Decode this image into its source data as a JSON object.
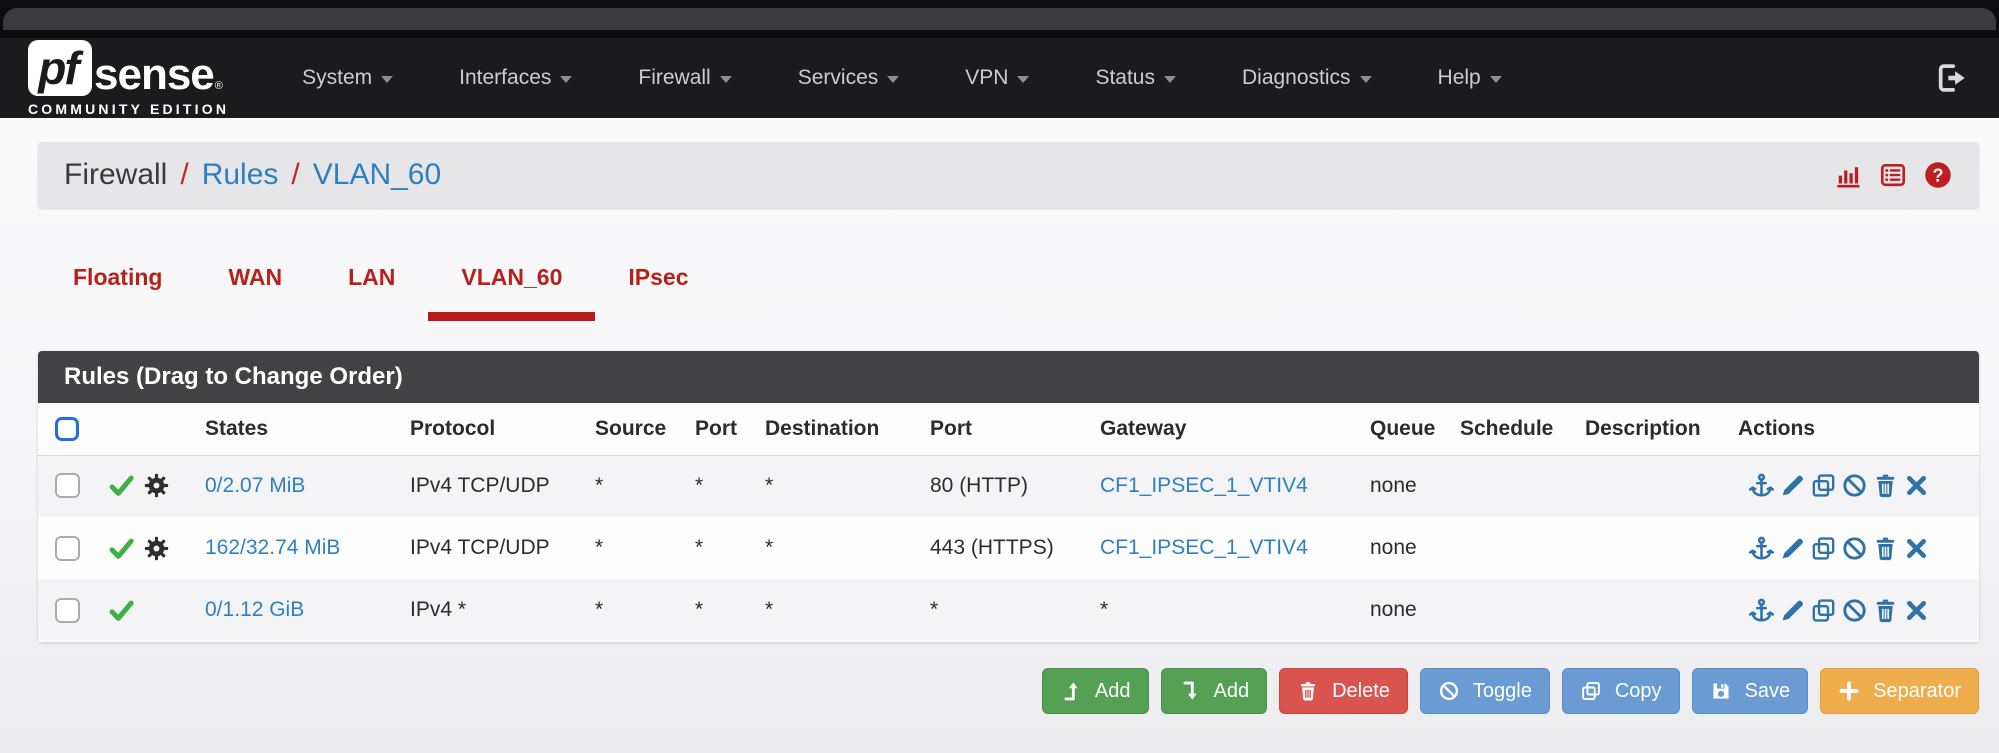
{
  "navbar": {
    "brand_pf": "pf",
    "brand_sense": "sense",
    "brand_reg": "®",
    "brand_subtitle": "COMMUNITY EDITION",
    "items": [
      {
        "label": "System"
      },
      {
        "label": "Interfaces"
      },
      {
        "label": "Firewall"
      },
      {
        "label": "Services"
      },
      {
        "label": "VPN"
      },
      {
        "label": "Status"
      },
      {
        "label": "Diagnostics"
      },
      {
        "label": "Help"
      }
    ],
    "logout_icon": "sign-out-icon"
  },
  "breadcrumb": {
    "section": "Firewall",
    "separator": "/",
    "links": [
      "Rules",
      "VLAN_60"
    ],
    "icons": [
      "bar-chart-icon",
      "table-list-icon",
      "help-circle-icon"
    ]
  },
  "tabs": [
    {
      "label": "Floating",
      "active": false
    },
    {
      "label": "WAN",
      "active": false
    },
    {
      "label": "LAN",
      "active": false
    },
    {
      "label": "VLAN_60",
      "active": true
    },
    {
      "label": "IPsec",
      "active": false
    }
  ],
  "rules": {
    "panel_title": "Rules (Drag to Change Order)",
    "columns": [
      "States",
      "Protocol",
      "Source",
      "Port",
      "Destination",
      "Port",
      "Gateway",
      "Queue",
      "Schedule",
      "Description",
      "Actions"
    ],
    "rows": [
      {
        "checked": false,
        "status_icons": [
          "check-icon",
          "gear-icon"
        ],
        "states": "0/2.07 MiB",
        "protocol": "IPv4 TCP/UDP",
        "source": "*",
        "source_port": "*",
        "destination": "*",
        "destination_port": "80 (HTTP)",
        "gateway": "CF1_IPSEC_1_VTIV4",
        "gateway_is_link": true,
        "queue": "none",
        "schedule": "",
        "description": "",
        "action_icons": [
          "anchor-icon",
          "pencil-icon",
          "copy-icon",
          "ban-icon",
          "trash-icon",
          "close-icon"
        ]
      },
      {
        "checked": false,
        "status_icons": [
          "check-icon",
          "gear-icon"
        ],
        "states": "162/32.74 MiB",
        "protocol": "IPv4 TCP/UDP",
        "source": "*",
        "source_port": "*",
        "destination": "*",
        "destination_port": "443 (HTTPS)",
        "gateway": "CF1_IPSEC_1_VTIV4",
        "gateway_is_link": true,
        "queue": "none",
        "schedule": "",
        "description": "",
        "action_icons": [
          "anchor-icon",
          "pencil-icon",
          "copy-icon",
          "ban-icon",
          "trash-icon",
          "close-icon"
        ]
      },
      {
        "checked": false,
        "status_icons": [
          "check-icon"
        ],
        "states": "0/1.12 GiB",
        "protocol": "IPv4 *",
        "source": "*",
        "source_port": "*",
        "destination": "*",
        "destination_port": "*",
        "gateway": "*",
        "gateway_is_link": false,
        "queue": "none",
        "schedule": "",
        "description": "",
        "action_icons": [
          "anchor-icon",
          "pencil-icon",
          "copy-icon",
          "ban-icon",
          "trash-icon",
          "close-icon"
        ]
      }
    ]
  },
  "footer_buttons": [
    {
      "label": "Add",
      "icon": "level-up-icon",
      "style": "success"
    },
    {
      "label": "Add",
      "icon": "level-down-icon",
      "style": "success"
    },
    {
      "label": "Delete",
      "icon": "trash-icon",
      "style": "danger"
    },
    {
      "label": "Toggle",
      "icon": "ban-icon",
      "style": "info"
    },
    {
      "label": "Copy",
      "icon": "copy-icon",
      "style": "info"
    },
    {
      "label": "Save",
      "icon": "save-icon",
      "style": "info"
    },
    {
      "label": "Separator",
      "icon": "plus-icon",
      "style": "warning"
    }
  ],
  "colors": {
    "navbar_bg": "#1b1b1d",
    "panel_header_bg": "#424244",
    "tab_red": "#b7211c",
    "accent_red_underline": "#b71c1c",
    "breadcrumb_icon_red": "#bb1f1f",
    "link_blue": "#2e80c0",
    "action_icon_blue": "#2e72a8",
    "check_green": "#3faf46",
    "success_btn": "#54a054",
    "danger_btn": "#d9534f",
    "info_btn": "#6a9bd3",
    "warning_btn": "#f0ad4e"
  }
}
